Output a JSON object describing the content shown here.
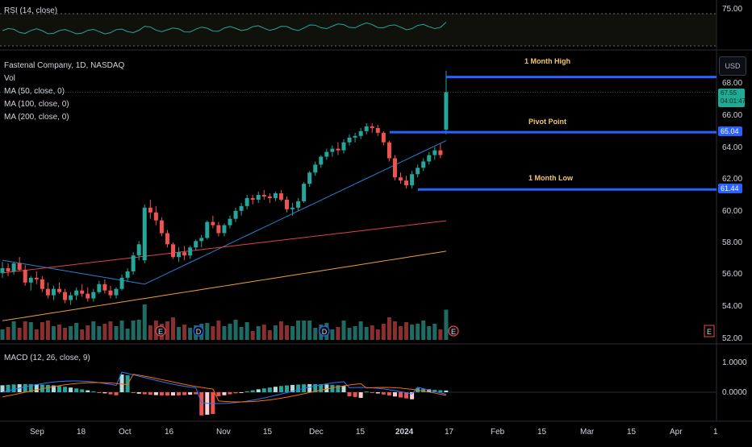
{
  "rsi": {
    "legend": "RSI (14, close)",
    "level_label": "75.00"
  },
  "main": {
    "title": "Fastenal Company, 1D, NASDAQ",
    "vol_label": "Vol",
    "ma_labels": [
      "MA (50, close, 0)",
      "MA (100, close, 0)",
      "MA (200, close, 0)"
    ],
    "currency": "USD",
    "y_ticks": [
      "68.00",
      "66.00",
      "64.00",
      "62.00",
      "60.00",
      "58.00",
      "56.00",
      "54.00",
      "52.00"
    ],
    "current_price": "67.55",
    "countdown": "04:01:47",
    "annotations": {
      "high": "1 Month High",
      "pivot": "Pivot Point",
      "low": "1 Month Low"
    },
    "levels": {
      "high": {
        "label": "",
        "value": 68.5
      },
      "pivot": {
        "label": "65.04",
        "value": 65.04
      },
      "low": {
        "label": "61.44",
        "value": 61.44
      }
    },
    "event_markers": [
      "E",
      "D",
      "E",
      "D",
      "E",
      "E"
    ]
  },
  "macd": {
    "legend": "MACD (12, 26, close, 9)",
    "y_ticks": [
      "1.0000",
      "0.0000"
    ]
  },
  "x_axis": {
    "labels": [
      "Sep",
      "18",
      "Oct",
      "16",
      "Nov",
      "15",
      "Dec",
      "15",
      "2024",
      "17",
      "Feb",
      "15",
      "Mar",
      "15",
      "Apr",
      "1"
    ]
  },
  "colors": {
    "up": "#26a69a",
    "down": "#ef5350",
    "ma50": "#2a7fd4",
    "ma100": "#e0424b",
    "ma200": "#f0a030",
    "level_line": "#2962ff",
    "rsi_line": "#26a69a",
    "macd_line": "#2979ff",
    "signal_line": "#ff6d00"
  },
  "chart_data": {
    "type": "candlestick",
    "title": "Fastenal Company, 1D, NASDAQ",
    "price_range": [
      52,
      69
    ],
    "candles": [
      [
        56.2,
        56.9,
        55.9,
        56.5
      ],
      [
        56.5,
        56.8,
        56.0,
        56.3
      ],
      [
        56.3,
        56.9,
        56.1,
        56.8
      ],
      [
        56.8,
        57.2,
        56.3,
        56.4
      ],
      [
        56.4,
        56.7,
        55.4,
        55.6
      ],
      [
        55.6,
        56.0,
        55.1,
        55.9
      ],
      [
        55.9,
        56.3,
        55.5,
        55.8
      ],
      [
        55.8,
        56.0,
        55.0,
        55.2
      ],
      [
        55.2,
        55.6,
        54.6,
        54.8
      ],
      [
        54.8,
        55.4,
        54.5,
        55.2
      ],
      [
        55.2,
        55.6,
        54.9,
        55.0
      ],
      [
        55.0,
        55.2,
        54.3,
        54.5
      ],
      [
        54.5,
        55.0,
        54.2,
        54.8
      ],
      [
        54.8,
        55.3,
        54.5,
        55.1
      ],
      [
        55.1,
        55.5,
        54.7,
        54.9
      ],
      [
        54.9,
        55.3,
        54.4,
        54.6
      ],
      [
        54.6,
        55.2,
        54.4,
        55.0
      ],
      [
        55.0,
        55.7,
        54.9,
        55.5
      ],
      [
        55.5,
        55.8,
        54.9,
        55.1
      ],
      [
        55.1,
        55.4,
        54.6,
        54.8
      ],
      [
        54.8,
        55.3,
        54.6,
        55.2
      ],
      [
        55.2,
        56.1,
        55.1,
        55.9
      ],
      [
        55.9,
        56.5,
        55.7,
        56.3
      ],
      [
        56.3,
        57.5,
        56.1,
        57.3
      ],
      [
        57.3,
        58.2,
        57.0,
        58.0
      ],
      [
        57.0,
        60.5,
        56.8,
        60.3
      ],
      [
        60.3,
        60.8,
        59.6,
        60.0
      ],
      [
        60.0,
        60.4,
        59.2,
        59.5
      ],
      [
        59.5,
        59.7,
        58.5,
        58.7
      ],
      [
        58.7,
        58.9,
        57.8,
        58.0
      ],
      [
        58.0,
        58.1,
        57.1,
        57.2
      ],
      [
        57.2,
        57.8,
        56.9,
        57.5
      ],
      [
        57.5,
        57.9,
        57.0,
        57.3
      ],
      [
        57.3,
        57.9,
        57.1,
        57.8
      ],
      [
        57.8,
        58.3,
        57.6,
        58.2
      ],
      [
        58.2,
        58.6,
        57.8,
        58.4
      ],
      [
        58.4,
        59.5,
        58.3,
        59.4
      ],
      [
        59.4,
        59.8,
        59.0,
        59.2
      ],
      [
        59.2,
        59.4,
        58.5,
        58.7
      ],
      [
        58.7,
        59.3,
        58.5,
        59.2
      ],
      [
        59.2,
        59.8,
        59.0,
        59.6
      ],
      [
        59.6,
        60.3,
        59.4,
        60.1
      ],
      [
        60.1,
        60.6,
        59.8,
        60.4
      ],
      [
        60.4,
        61.1,
        60.2,
        60.9
      ],
      [
        60.9,
        61.1,
        60.5,
        60.8
      ],
      [
        60.8,
        61.3,
        60.6,
        61.1
      ],
      [
        61.1,
        61.4,
        60.8,
        61.0
      ],
      [
        61.0,
        61.2,
        60.6,
        60.9
      ],
      [
        60.9,
        61.3,
        60.7,
        61.2
      ],
      [
        61.2,
        61.4,
        60.7,
        60.8
      ],
      [
        60.8,
        61.0,
        60.0,
        60.2
      ],
      [
        60.2,
        60.6,
        59.8,
        60.3
      ],
      [
        60.3,
        60.9,
        60.1,
        60.7
      ],
      [
        60.7,
        61.9,
        60.6,
        61.8
      ],
      [
        61.8,
        62.6,
        61.6,
        62.5
      ],
      [
        62.5,
        63.2,
        62.3,
        63.0
      ],
      [
        63.0,
        63.6,
        62.8,
        63.5
      ],
      [
        63.5,
        64.0,
        63.3,
        63.8
      ],
      [
        63.8,
        64.2,
        63.5,
        64.0
      ],
      [
        64.0,
        64.4,
        63.6,
        63.9
      ],
      [
        63.9,
        64.6,
        63.7,
        64.4
      ],
      [
        64.4,
        64.9,
        64.2,
        64.7
      ],
      [
        64.7,
        65.0,
        64.4,
        64.8
      ],
      [
        64.8,
        65.3,
        64.6,
        65.1
      ],
      [
        65.1,
        65.6,
        64.9,
        65.4
      ],
      [
        65.4,
        65.6,
        65.0,
        65.3
      ],
      [
        65.3,
        65.5,
        64.8,
        65.0
      ],
      [
        65.0,
        65.1,
        64.2,
        64.4
      ],
      [
        64.4,
        64.5,
        63.2,
        63.4
      ],
      [
        63.4,
        63.6,
        62.0,
        62.2
      ],
      [
        62.2,
        62.5,
        61.8,
        62.0
      ],
      [
        62.0,
        62.3,
        61.5,
        61.7
      ],
      [
        61.7,
        62.6,
        61.5,
        62.4
      ],
      [
        62.4,
        63.0,
        62.2,
        62.8
      ],
      [
        62.8,
        63.4,
        62.6,
        63.2
      ],
      [
        63.2,
        63.8,
        63.0,
        63.6
      ],
      [
        63.6,
        64.1,
        63.3,
        63.9
      ],
      [
        63.9,
        64.3,
        63.4,
        63.6
      ],
      [
        65.2,
        68.9,
        64.9,
        67.55
      ]
    ]
  }
}
